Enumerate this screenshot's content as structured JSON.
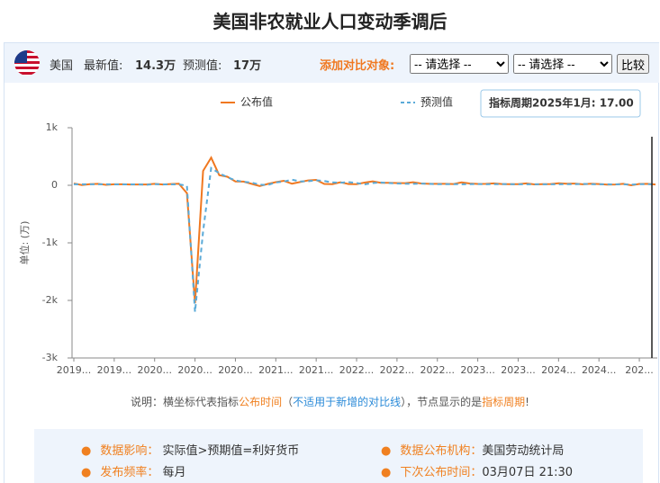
{
  "header": {
    "title": "美国非农就业人口变动季调后",
    "country": "美国",
    "latest_label": "最新值:",
    "latest_value": "14.3万",
    "forecast_label": "预测值:",
    "forecast_value": "17万",
    "compare_label": "添加对比对象:",
    "select_1": "-- 请选择 --",
    "select_2": "-- 请选择 --",
    "button": "比较"
  },
  "chart_data": {
    "type": "line",
    "y_label": "单位: (万)",
    "tooltip": "指标周期2025年1月: 17.00",
    "categories": [
      "2019...",
      null,
      null,
      null,
      null,
      "2019...",
      null,
      null,
      null,
      null,
      "2020...",
      null,
      null,
      null,
      null,
      "2020...",
      null,
      null,
      null,
      null,
      "2020...",
      null,
      null,
      null,
      null,
      "2021...",
      null,
      null,
      null,
      null,
      "2021...",
      null,
      null,
      null,
      null,
      "2022...",
      null,
      null,
      null,
      null,
      "2022...",
      null,
      null,
      null,
      null,
      "2022...",
      null,
      null,
      null,
      null,
      "2023...",
      null,
      null,
      null,
      null,
      "2023...",
      null,
      null,
      null,
      null,
      "2024...",
      null,
      null,
      null,
      null,
      "2024...",
      null,
      null,
      null,
      null,
      "202...",
      null,
      null
    ],
    "series": [
      {
        "name": "公布值",
        "color": "#f07820",
        "dashed": false,
        "values": [
          31,
          5,
          19,
          26,
          7,
          18,
          17,
          14,
          14,
          13,
          26,
          14,
          21,
          27,
          -137,
          -2050,
          250,
          480,
          176,
          149,
          66,
          64,
          25,
          -14,
          23,
          54,
          78,
          27,
          56,
          85,
          94,
          24,
          19,
          53,
          21,
          20,
          47,
          68,
          43,
          43,
          39,
          37,
          53,
          32,
          26,
          26,
          26,
          22,
          51,
          31,
          24,
          25,
          34,
          21,
          19,
          19,
          34,
          15,
          20,
          22,
          35,
          28,
          30,
          17,
          27,
          21,
          11,
          14,
          25,
          1,
          23,
          26,
          14.3
        ]
      },
      {
        "name": "预测值",
        "color": "#5aaad8",
        "dashed": true,
        "values": [
          17,
          18,
          17,
          18,
          18,
          16,
          16,
          16,
          15,
          9,
          19,
          16,
          16,
          17,
          -10,
          -2200,
          -800,
          300,
          210,
          140,
          85,
          60,
          47,
          10,
          5,
          50,
          65,
          98,
          67,
          70,
          87,
          75,
          50,
          45,
          55,
          40,
          15,
          40,
          48,
          39,
          32,
          27,
          25,
          30,
          25,
          20,
          20,
          20,
          18,
          20,
          21,
          18,
          19,
          21,
          20,
          17,
          17,
          18,
          17,
          17,
          18,
          20,
          20,
          24,
          19,
          18,
          17,
          16,
          17,
          11,
          20,
          20,
          17
        ]
      }
    ],
    "ylim": [
      -3000,
      1000
    ],
    "yticks": [
      {
        "value": 1000,
        "label": "1k"
      },
      0,
      {
        "value": -1000,
        "label": "-1k"
      },
      {
        "value": -2000,
        "label": "-2k"
      },
      {
        "value": -3000,
        "label": "-3k"
      }
    ]
  },
  "note": {
    "p1": "说明：横坐标代表指标",
    "p2": "公布时间",
    "p3": "（",
    "p4": "不适用于新增的对比线",
    "p5": "），节点显示的是",
    "p6": "指标周期",
    "p7": "!"
  },
  "info": {
    "impact_label": "数据影响：",
    "impact": "实际值>预期值=利好货币",
    "agency_label": "数据公布机构：",
    "agency": "美国劳动统计局",
    "freq_label": "发布频率：",
    "freq": "每月",
    "next_label": "下次公布时间：",
    "next": "03月07日 21:30"
  }
}
